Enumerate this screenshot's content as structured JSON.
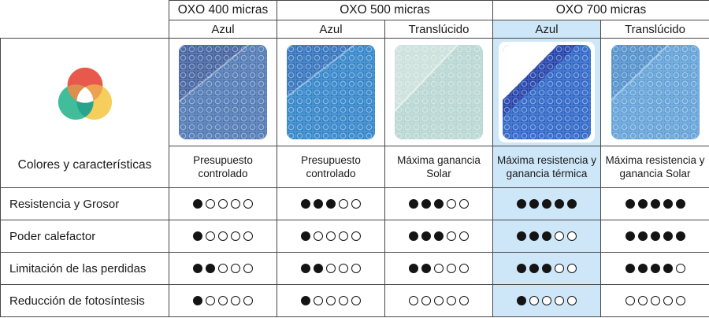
{
  "corner": {
    "label": "Colores y características"
  },
  "groups": [
    {
      "label": "OXO 400 micras"
    },
    {
      "label": "OXO 500 micras"
    },
    {
      "label": "OXO 700 micras"
    }
  ],
  "products": [
    {
      "variant": "Azul",
      "description": "Presupuesto controlado",
      "highlighted": false,
      "swatch": {
        "name": "cover-azul-400",
        "main": "#4d76b2",
        "fold": "#3f5f9d"
      }
    },
    {
      "variant": "Azul",
      "description": "Presupuesto controlado",
      "highlighted": false,
      "swatch": {
        "name": "cover-azul-500",
        "main": "#2f82c8",
        "fold": "#2f70bb"
      }
    },
    {
      "variant": "Translúcido",
      "description": "Máxima ganancia Solar",
      "highlighted": false,
      "swatch": {
        "name": "cover-translucido-500",
        "main": "#b7d6d1",
        "fold": "#cbe0db"
      }
    },
    {
      "variant": "Azul",
      "description": "Máxima resistencia y ganancia térmica",
      "highlighted": true,
      "swatch": {
        "name": "cover-azul-700",
        "main": "#2a63c5",
        "fold": "#1e3ea8",
        "wedge": "#ffffff"
      }
    },
    {
      "variant": "Translúcido",
      "description": "Máxima resistencia y ganancia Solar",
      "highlighted": false,
      "swatch": {
        "name": "cover-translucido-700",
        "main": "#5f9fd7",
        "fold": "#4e8ecb"
      }
    }
  ],
  "chart_data": {
    "type": "table",
    "columns": [
      "OXO 400 micras — Azul",
      "OXO 500 micras — Azul",
      "OXO 500 micras — Translúcido",
      "OXO 700 micras — Azul",
      "OXO 700 micras — Translúcido"
    ],
    "scale_max": 5,
    "rows": [
      {
        "label": "Resistencia y Grosor",
        "values": [
          1,
          3,
          3,
          5,
          5
        ]
      },
      {
        "label": "Poder calefactor",
        "values": [
          1,
          1,
          3,
          3,
          5
        ]
      },
      {
        "label": "Limitación de las perdidas",
        "values": [
          2,
          2,
          2,
          3,
          4
        ]
      },
      {
        "label": "Reducción de fotosíntesis",
        "values": [
          1,
          1,
          0,
          1,
          0
        ]
      }
    ]
  },
  "colors": {
    "highlight": "#cde7f8",
    "border": "#474747",
    "dot": "#141414",
    "venn": {
      "red": "#e8584c",
      "teal": "#41bd9a",
      "yellow": "#f6ce5b",
      "red_teal": "#de8e4f",
      "red_yellow": "#eda251",
      "teal_yellow": "#28a38c",
      "center": "#ffffff"
    }
  }
}
